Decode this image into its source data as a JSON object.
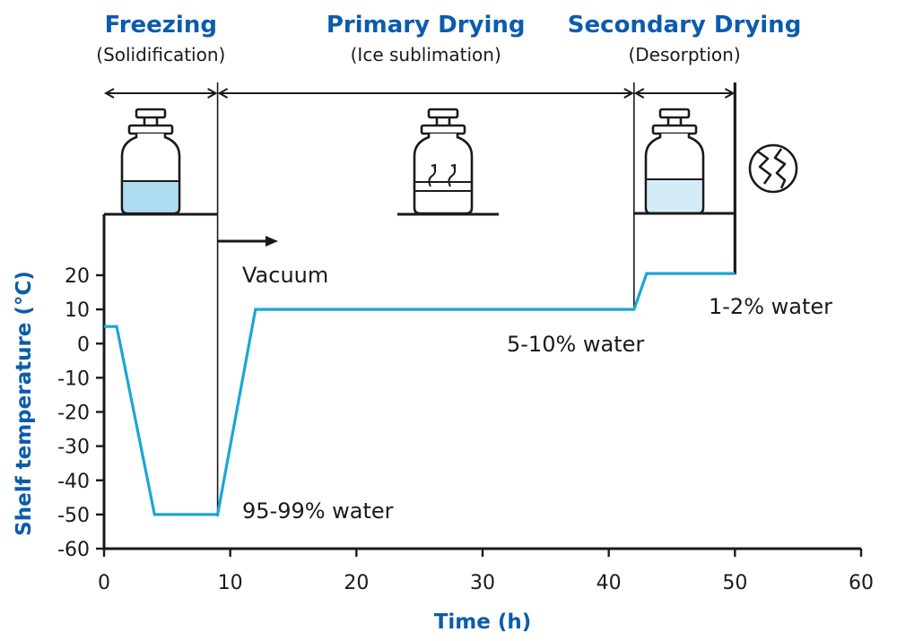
{
  "colors": {
    "accent": "#0b5cad",
    "line": "#1aa6d6",
    "ink": "#1a1a1a",
    "liquid": "#aedcf0",
    "liquid_light": "#d4ecf8"
  },
  "phases": [
    {
      "title": "Freezing",
      "subtitle": "(Solidification)",
      "x_start": 0,
      "x_end": 9
    },
    {
      "title": "Primary Drying",
      "subtitle": "(Ice sublimation)",
      "x_start": 9,
      "x_end": 42
    },
    {
      "title": "Secondary Drying",
      "subtitle": "(Desorption)",
      "x_start": 42,
      "x_end": 50
    }
  ],
  "annotations": {
    "vacuum": "Vacuum",
    "water_95_99": "95-99% water",
    "water_5_10": "5-10% water",
    "water_1_2": "1-2% water"
  },
  "icons": {
    "vial_frozen": "vial-frozen-icon",
    "vial_sublimation": "vial-sublimation-icon",
    "vial_dry": "vial-dry-icon",
    "seal": "cracked-seal-icon"
  },
  "chart_data": {
    "type": "line",
    "xlabel": "Time (h)",
    "ylabel": "Shelf temperature (°C)",
    "xlim": [
      0,
      60
    ],
    "ylim": [
      -60,
      20
    ],
    "xticks": [
      0,
      10,
      20,
      30,
      40,
      50,
      60
    ],
    "yticks": [
      20,
      10,
      0,
      -10,
      -20,
      -30,
      -40,
      -50,
      -60
    ],
    "grid": false,
    "series": [
      {
        "x": [
          0,
          1,
          4,
          9,
          12,
          42,
          43,
          50
        ],
        "y": [
          5,
          5,
          -50,
          -50,
          10,
          10,
          20.5,
          20.5
        ]
      }
    ]
  }
}
